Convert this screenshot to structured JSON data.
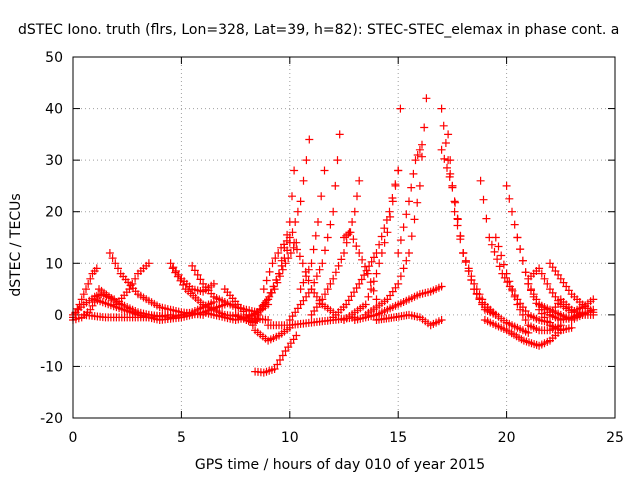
{
  "chart_data": {
    "type": "scatter",
    "title": "dSTEC Iono. truth (flrs, Lon=328, Lat=39, h=82): STEC-STEC_elemax in phase cont. a",
    "xlabel": "GPS time / hours of day 010 of year 2015",
    "ylabel": "dSTEC  / TECUs",
    "xlim": [
      0,
      25
    ],
    "ylim": [
      -20,
      50
    ],
    "xticks": [
      0,
      5,
      10,
      15,
      20,
      25
    ],
    "yticks": [
      -20,
      -10,
      0,
      10,
      20,
      30,
      40,
      50
    ],
    "grid": true,
    "marker": "+",
    "marker_color": "#ff0000",
    "series": [
      {
        "x": [
          0.0,
          0.3,
          0.6,
          0.9,
          1.1
        ],
        "y": [
          -0.5,
          2.0,
          5.0,
          8.0,
          9.0
        ]
      },
      {
        "x": [
          0.0,
          0.4,
          0.8,
          1.0
        ],
        "y": [
          -1.0,
          -0.5,
          1.0,
          2.5
        ]
      },
      {
        "x": [
          0.0,
          0.5,
          1.0,
          1.3,
          1.9
        ],
        "y": [
          0.0,
          2.0,
          3.5,
          4.0,
          3.0
        ]
      },
      {
        "x": [
          1.7,
          2.2,
          3.0,
          4.0,
          5.0,
          6.0
        ],
        "y": [
          12.0,
          8.0,
          4.0,
          1.5,
          0.5,
          0.0
        ]
      },
      {
        "x": [
          1.2,
          2.0,
          3.0,
          3.5
        ],
        "y": [
          5.0,
          2.5,
          0.5,
          0.0
        ]
      },
      {
        "x": [
          2.0,
          2.6,
          3.0,
          3.5
        ],
        "y": [
          2.0,
          5.0,
          8.0,
          10.0
        ]
      },
      {
        "x": [
          0.5,
          1.5,
          2.5,
          3.5,
          4.5
        ],
        "y": [
          0.0,
          -0.5,
          -0.5,
          -0.5,
          0.0
        ]
      },
      {
        "x": [
          1.0,
          2.0,
          3.0,
          4.0,
          5.0,
          6.0,
          7.0
        ],
        "y": [
          3.0,
          1.5,
          0.0,
          -1.0,
          -0.5,
          0.5,
          2.0
        ]
      },
      {
        "x": [
          4.5,
          5.0,
          5.5,
          6.0,
          6.5
        ],
        "y": [
          10.0,
          7.0,
          5.0,
          4.5,
          6.0
        ]
      },
      {
        "x": [
          4.6,
          5.2,
          6.0,
          7.0,
          8.0,
          9.0
        ],
        "y": [
          9.0,
          5.0,
          2.0,
          0.0,
          -0.5,
          -1.0
        ]
      },
      {
        "x": [
          5.5,
          6.0,
          6.5,
          7.5,
          8.5
        ],
        "y": [
          9.5,
          6.0,
          3.5,
          1.5,
          0.5
        ]
      },
      {
        "x": [
          3.5,
          4.5,
          5.5,
          6.5
        ],
        "y": [
          0.0,
          -0.5,
          0.5,
          2.5
        ]
      },
      {
        "x": [
          6.0,
          7.0,
          7.5,
          8.0,
          8.5,
          9.0
        ],
        "y": [
          0.5,
          -0.5,
          -1.0,
          -0.5,
          0.5,
          2.0
        ]
      },
      {
        "x": [
          7.0,
          7.6,
          8.0
        ],
        "y": [
          5.0,
          2.0,
          0.0
        ]
      },
      {
        "x": [
          7.5,
          8.0,
          8.3,
          8.5
        ],
        "y": [
          0.0,
          -1.0,
          -1.5,
          -1.0
        ]
      },
      {
        "x": [
          8.0,
          8.5,
          9.0,
          9.5,
          10.0,
          10.2
        ],
        "y": [
          -1.0,
          0.5,
          3.0,
          8.0,
          18.0,
          28.0
        ]
      },
      {
        "x": [
          8.3,
          8.8,
          9.3,
          9.8,
          10.3
        ],
        "y": [
          -2.0,
          2.0,
          5.0,
          10.0,
          14.0
        ]
      },
      {
        "x": [
          8.5,
          9.0,
          9.5,
          10.0,
          10.5,
          10.9
        ],
        "y": [
          0.5,
          3.0,
          8.0,
          14.0,
          22.0,
          34.0
        ]
      },
      {
        "x": [
          8.8,
          9.2,
          9.6,
          10.0
        ],
        "y": [
          5.0,
          10.0,
          13.0,
          15.0
        ]
      },
      {
        "x": [
          8.4,
          9.0,
          9.5,
          10.0
        ],
        "y": [
          -3.0,
          -5.0,
          -4.0,
          -2.5
        ]
      },
      {
        "x": [
          8.4,
          8.8,
          9.3,
          9.8,
          10.3
        ],
        "y": [
          -11.0,
          -11.2,
          -10.5,
          -7.0,
          -4.0
        ]
      },
      {
        "x": [
          9.0,
          10.0,
          11.0,
          12.0,
          13.0
        ],
        "y": [
          -2.0,
          -2.0,
          -1.5,
          -1.0,
          -0.5
        ]
      },
      {
        "x": [
          10.0,
          10.5,
          11.0,
          11.5,
          12.0,
          12.3
        ],
        "y": [
          -1.0,
          2.0,
          5.0,
          10.0,
          20.0,
          35.0
        ]
      },
      {
        "x": [
          10.5,
          11.0,
          11.3,
          11.6
        ],
        "y": [
          5.0,
          10.0,
          18.0,
          28.0
        ]
      },
      {
        "x": [
          10.2,
          10.6,
          11.0,
          11.5,
          12.0
        ],
        "y": [
          14.0,
          10.0,
          5.0,
          2.0,
          0.5
        ]
      },
      {
        "x": [
          11.0,
          11.5,
          12.0,
          12.5,
          13.0,
          13.2
        ],
        "y": [
          0.0,
          3.0,
          7.0,
          12.0,
          20.0,
          26.0
        ]
      },
      {
        "x": [
          12.5,
          12.8,
          13.2,
          13.6,
          14.0
        ],
        "y": [
          15.0,
          16.0,
          12.0,
          8.0,
          3.0
        ]
      },
      {
        "x": [
          12.0,
          12.6,
          13.2,
          14.0,
          14.6,
          15.0
        ],
        "y": [
          -0.5,
          2.0,
          6.0,
          12.0,
          20.0,
          28.0
        ]
      },
      {
        "x": [
          12.5,
          13.5,
          14.0,
          14.5,
          15.0,
          15.1
        ],
        "y": [
          -1.0,
          2.0,
          8.0,
          16.0,
          28.0,
          40.0
        ]
      },
      {
        "x": [
          13.5,
          14.0,
          14.5,
          15.0,
          15.5,
          16.0,
          16.3
        ],
        "y": [
          0.0,
          1.5,
          3.0,
          6.0,
          12.0,
          25.0,
          42.0
        ]
      },
      {
        "x": [
          13.0,
          14.0,
          15.0,
          16.0,
          16.5,
          17.0
        ],
        "y": [
          -1.0,
          0.0,
          2.0,
          4.0,
          4.5,
          5.5
        ]
      },
      {
        "x": [
          14.0,
          14.8,
          15.5,
          16.0,
          16.5,
          17.0
        ],
        "y": [
          -1.0,
          -0.5,
          0.0,
          -0.5,
          -2.0,
          -1.0
        ]
      },
      {
        "x": [
          15.0,
          15.5,
          15.8,
          16.1
        ],
        "y": [
          12.0,
          22.0,
          30.0,
          33.0
        ]
      },
      {
        "x": [
          17.0,
          17.3,
          17.6,
          18.0,
          18.5,
          19.0,
          19.5
        ],
        "y": [
          40.0,
          30.0,
          22.0,
          12.0,
          5.0,
          1.0,
          0.0
        ]
      },
      {
        "x": [
          17.3,
          17.6,
          18.0,
          18.5,
          19.0,
          19.5,
          20.0,
          20.5,
          21.0
        ],
        "y": [
          35.0,
          20.0,
          12.0,
          5.0,
          1.5,
          0.0,
          -1.5,
          -2.5,
          -3.5
        ]
      },
      {
        "x": [
          17.0,
          17.5,
          18.0,
          18.5,
          19.0,
          19.5
        ],
        "y": [
          32.0,
          25.0,
          12.0,
          6.0,
          2.0,
          0.0
        ]
      },
      {
        "x": [
          18.8,
          19.2,
          19.8,
          20.5,
          21.0,
          21.5,
          22.0
        ],
        "y": [
          26.0,
          15.0,
          8.0,
          3.0,
          0.0,
          -1.0,
          -1.5
        ]
      },
      {
        "x": [
          19.5,
          20.0,
          20.5,
          21.0,
          21.5,
          22.0,
          22.5
        ],
        "y": [
          15.0,
          8.0,
          2.0,
          -2.0,
          -3.0,
          -3.0,
          -2.0
        ]
      },
      {
        "x": [
          20.0,
          20.5,
          21.0,
          21.5,
          22.0,
          22.5,
          23.0
        ],
        "y": [
          25.0,
          15.0,
          6.0,
          1.0,
          -2.0,
          -3.0,
          -2.5
        ]
      },
      {
        "x": [
          20.5,
          21.0,
          21.5,
          22.0,
          22.5,
          23.0,
          23.5
        ],
        "y": [
          15.0,
          6.0,
          2.0,
          0.0,
          -1.0,
          -0.5,
          0.5
        ]
      },
      {
        "x": [
          19.0,
          20.0,
          20.8,
          21.5,
          22.0,
          22.5
        ],
        "y": [
          -1.0,
          -3.0,
          -5.0,
          -6.0,
          -5.0,
          -3.0
        ]
      },
      {
        "x": [
          21.0,
          21.5,
          22.0,
          22.5,
          23.0,
          23.5,
          24.0
        ],
        "y": [
          7.0,
          9.0,
          5.0,
          2.0,
          0.5,
          1.5,
          3.0
        ]
      },
      {
        "x": [
          22.0,
          22.5,
          23.0,
          23.5,
          24.0
        ],
        "y": [
          10.0,
          7.0,
          4.0,
          2.0,
          0.5
        ]
      },
      {
        "x": [
          22.0,
          22.5,
          23.0,
          23.5,
          24.0
        ],
        "y": [
          0.0,
          3.0,
          1.0,
          0.0,
          0.0
        ]
      },
      {
        "x": [
          21.5,
          22.5,
          23.0,
          23.5,
          24.0
        ],
        "y": [
          2.0,
          0.0,
          -1.0,
          0.0,
          1.0
        ]
      }
    ]
  }
}
